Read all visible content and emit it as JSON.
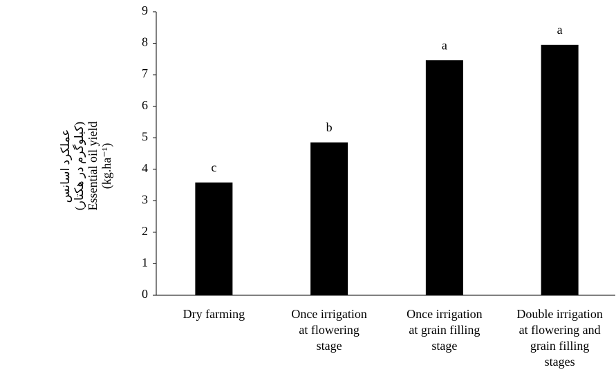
{
  "chart_data": {
    "type": "bar",
    "y_label": [
      "عملکرد اسانس",
      "(کیلوگرم در هکتار)",
      "Essential oil yield",
      "(kg.ha⁻¹)"
    ],
    "categories": [
      [
        "Dry farming"
      ],
      [
        "Once irrigation",
        "at flowering",
        "stage"
      ],
      [
        "Once irrigation",
        "at grain filling",
        "stage"
      ],
      [
        "Double irrigation",
        "at flowering and",
        "grain filling",
        "stages"
      ]
    ],
    "values": [
      3.58,
      4.85,
      7.46,
      7.95
    ],
    "significance_letters": [
      "c",
      "b",
      "a",
      "a"
    ],
    "color": "#000000",
    "ylim": [
      0,
      9
    ],
    "yticks": [
      0,
      1,
      2,
      3,
      4,
      5,
      6,
      7,
      8,
      9
    ],
    "grid": false
  }
}
